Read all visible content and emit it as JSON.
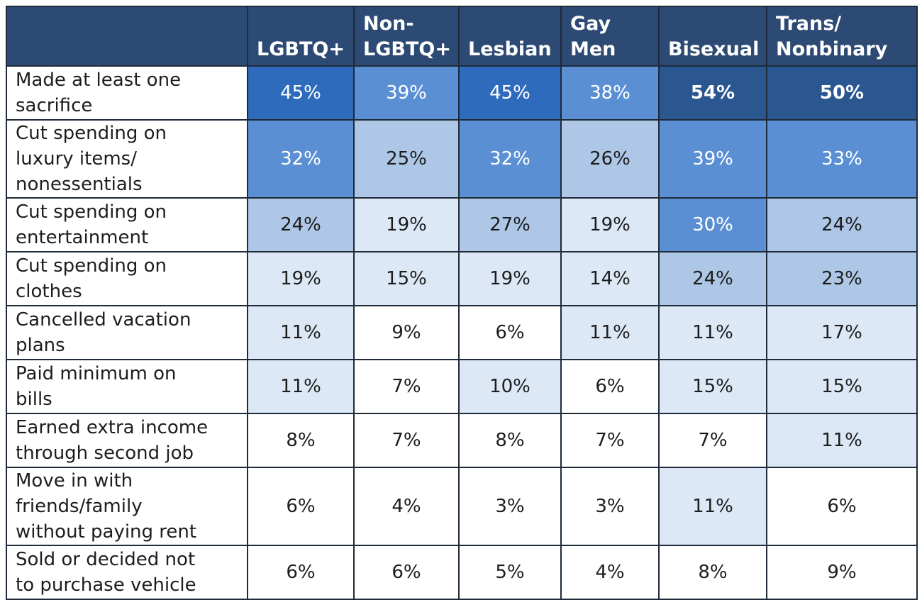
{
  "chart_data": {
    "type": "table",
    "columns": [
      "LGBTQ+",
      "Non-LGBTQ+",
      "Lesbian",
      "Gay Men",
      "Bisexual",
      "Trans/Nonbinary"
    ],
    "column_header_lines": [
      [
        "LGBTQ+"
      ],
      [
        "Non-",
        "LGBTQ+"
      ],
      [
        "Lesbian"
      ],
      [
        "Gay",
        "Men"
      ],
      [
        "Bisexual"
      ],
      [
        "Trans/",
        "Nonbinary"
      ]
    ],
    "rows": [
      {
        "label_lines": [
          "Made at least one",
          "sacrifice"
        ],
        "values": [
          "45%",
          "39%",
          "45%",
          "38%",
          "54%",
          "50%"
        ],
        "shades": [
          4,
          3,
          4,
          3,
          5,
          5
        ],
        "bold": [
          false,
          false,
          false,
          false,
          true,
          true
        ]
      },
      {
        "label_lines": [
          "Cut spending on",
          "luxury items/",
          "nonessentials"
        ],
        "values": [
          "32%",
          "25%",
          "32%",
          "26%",
          "39%",
          "33%"
        ],
        "shades": [
          3,
          2,
          3,
          2,
          3,
          3
        ],
        "bold": [
          false,
          false,
          false,
          false,
          false,
          false
        ]
      },
      {
        "label_lines": [
          "Cut spending on",
          "entertainment"
        ],
        "values": [
          "24%",
          "19%",
          "27%",
          "19%",
          "30%",
          "24%"
        ],
        "shades": [
          2,
          1,
          2,
          1,
          3,
          2
        ],
        "bold": [
          false,
          false,
          false,
          false,
          false,
          false
        ]
      },
      {
        "label_lines": [
          "Cut spending on",
          "clothes"
        ],
        "values": [
          "19%",
          "15%",
          "19%",
          "14%",
          "24%",
          "23%"
        ],
        "shades": [
          1,
          1,
          1,
          1,
          2,
          2
        ],
        "bold": [
          false,
          false,
          false,
          false,
          false,
          false
        ]
      },
      {
        "label_lines": [
          "Cancelled vacation",
          "plans"
        ],
        "values": [
          "11%",
          "9%",
          "6%",
          "11%",
          "11%",
          "17%"
        ],
        "shades": [
          1,
          0,
          0,
          1,
          1,
          1
        ],
        "bold": [
          false,
          false,
          false,
          false,
          false,
          false
        ]
      },
      {
        "label_lines": [
          "Paid minimum on",
          "bills"
        ],
        "values": [
          "11%",
          "7%",
          "10%",
          "6%",
          "15%",
          "15%"
        ],
        "shades": [
          1,
          0,
          1,
          0,
          1,
          1
        ],
        "bold": [
          false,
          false,
          false,
          false,
          false,
          false
        ]
      },
      {
        "label_lines": [
          "Earned extra income",
          "through second job"
        ],
        "values": [
          "8%",
          "7%",
          "8%",
          "7%",
          "7%",
          "11%"
        ],
        "shades": [
          0,
          0,
          0,
          0,
          0,
          1
        ],
        "bold": [
          false,
          false,
          false,
          false,
          false,
          false
        ]
      },
      {
        "label_lines": [
          "Move in with",
          "friends/family",
          "without paying rent"
        ],
        "values": [
          "6%",
          "4%",
          "3%",
          "3%",
          "11%",
          "6%"
        ],
        "shades": [
          0,
          0,
          0,
          0,
          1,
          0
        ],
        "bold": [
          false,
          false,
          false,
          false,
          false,
          false
        ]
      },
      {
        "label_lines": [
          "Sold or decided not",
          "to purchase vehicle"
        ],
        "values": [
          "6%",
          "6%",
          "5%",
          "4%",
          "8%",
          "9%"
        ],
        "shades": [
          0,
          0,
          0,
          0,
          0,
          0
        ],
        "bold": [
          false,
          false,
          false,
          false,
          false,
          false
        ]
      }
    ]
  },
  "colors": {
    "header_bg": "#2c4a73",
    "shade_0": "#ffffff",
    "shade_1": "#dde8f6",
    "shade_2": "#aec7e7",
    "shade_3": "#5b8fd4",
    "shade_4": "#2f6bbd",
    "shade_5": "#2b5791",
    "text_dark": "#1d1d1d",
    "text_light": "#ffffff"
  }
}
